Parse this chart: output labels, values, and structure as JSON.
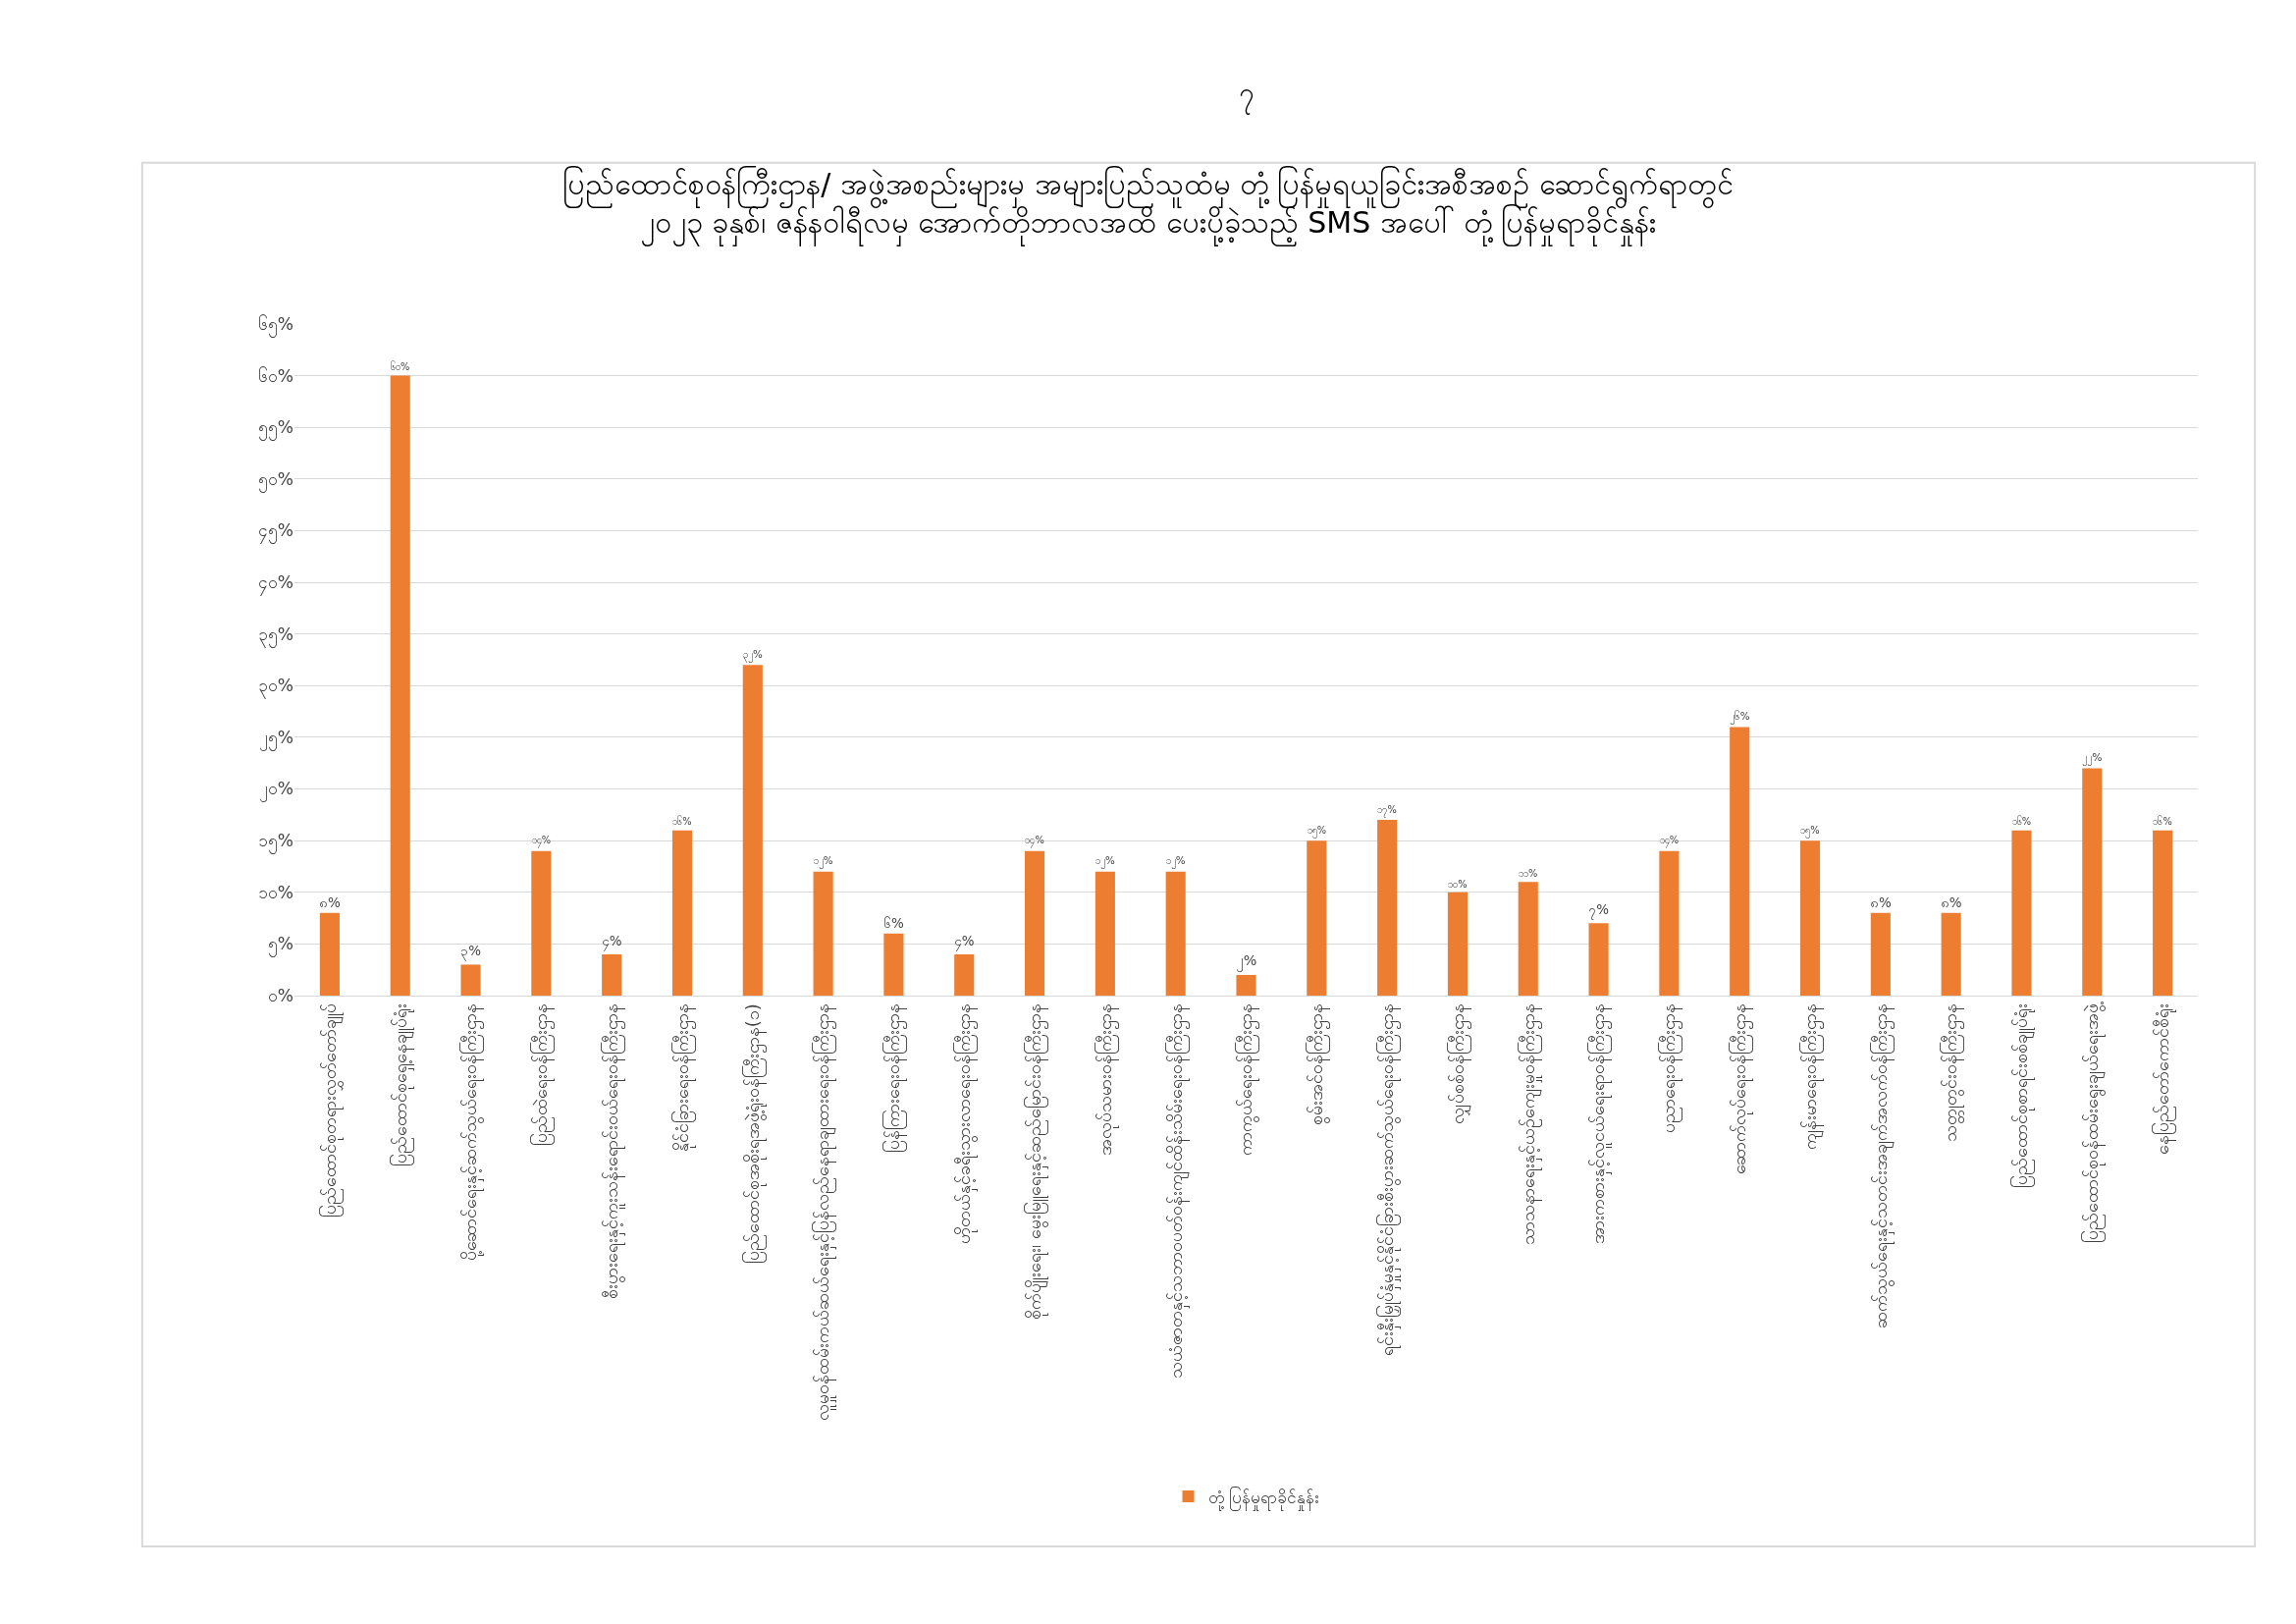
{
  "chart_data": {
    "type": "bar",
    "title": "ပြည်ထောင်စုဝန်ကြီးဌာန/ အဖွဲ့အစည်းများမှ အများပြည်သူထံမှ တုံ့ပြန်မှုရယူခြင်းအစီအစဉ် ဆောင်ရွက်ရာတွင်\n၂၀၂၃ ခုနှစ်၊ ဇန်နဝါရီလမှ အောက်တိုဘာလအထိ ပေးပို့ခဲ့သည့် SMS အပေါ် တုံ့ပြန်မှုရာခိုင်နှုန်း",
    "annotations": [
      "၇"
    ],
    "categories": [
      "ပြည်ထောင်စုတရားလွှတ်တော်ချုပ်",
      "ပြည်ထောင်စုရှေ့နေချုပ်ရုံး",
      "ပို့ဆောင်ရေးနှင့်ဆက်သွယ်ရေးဝန်ကြီးဌာန",
      "ပြည်ထဲရေးဝန်ကြီးဌာန",
      "စီးပွားရေးနှင့်ကူးသန်းရောင်းဝယ်ရေးဝန်ကြီးဌာန",
      "နိုင်ငံခြားရေးဝန်ကြီးဌာန",
      "ပြည်ထောင်စုအစိုးရအဖွဲ့ရုံးဝန်ကြီးဌာန(၁)",
      "လူမှုဝန်ထမ်းကယ်ဆယ်ရေးနှင့်ပြန်လည်နေရာချထားရေးဝန်ကြီးဌာန",
      "ပြန်ကြားရေးဝန်ကြီးဌာန",
      "ဟိုတယ်နှင့်ခရီးသွားလာရေးဝန်ကြီးဌာန",
      "စိုက်ပျိုးရေး၊ မွေးမြူရေးနှင့်ဆည်မြောင်းဝန်ကြီးဌာန",
      "အလုပ်သမားဝန်ကြီးဌာန",
      "သယံဇာတနှင့်သဘာဝပတ်ဝန်းကျင်ထိန်းသိမ်းရေးဝန်ကြီးဌာန",
      "ကာကွယ်ရေးဝန်ကြီးဌာန",
      "စွမ်းအင်ဝန်ကြီးဌာန",
      "ရင်းနှီးမြှုပ်နှံမှုနှင့်နိုင်ငံခြားစီးပွားဆက်သွယ်ရေးဝန်ကြီးဌာန",
      "လျှပ်စစ်ဝန်ကြီးဌာန",
      "သာသနာရေးနှင့်ယဉ်ကျေးမှုဝန်ကြီးဌာန",
      "အားကစားနှင့်လူငယ်ရေးရာဝန်ကြီးဌာန",
      "ပညာရေးဝန်ကြီးဌာန",
      "ဆောက်လုပ်ရေးဝန်ကြီးဌာန",
      "ကျန်းမာရေးဝန်ကြီးဌာန",
      "ဆက်သွယ်ရေးနှင့်သတင်းအချက်အလက်ဝန်ကြီးဌာန",
      "သတ္တုတွင်းဝန်ကြီးဌာန",
      "ပြည်ထောင်စုစာရင်းစစ်ချုပ်ရုံး",
      "ပြည်ထောင်စုဝန်ထမ်းရွေးချယ်ရေးအဖွဲ့",
      "နေပြည်တော်ကောင်စီရုံး"
    ],
    "series": [
      {
        "name": "တုံ့ပြန်မှုရာခိုင်နှုန်း",
        "color": "#ed7d31",
        "values": [
          8,
          60,
          3,
          14,
          4,
          16,
          32,
          12,
          6,
          4,
          14,
          12,
          12,
          2,
          15,
          17,
          10,
          11,
          7,
          14,
          26,
          15,
          8,
          8,
          16,
          22,
          16
        ],
        "value_labels": [
          "၈%",
          "၆၀%",
          "၃%",
          "၁၄%",
          "၄%",
          "၁၆%",
          "၃၂%",
          "၁၂%",
          "၆%",
          "၄%",
          "၁၄%",
          "၁၂%",
          "၁၂%",
          "၂%",
          "၁၅%",
          "၁၇%",
          "၁၀%",
          "၁၁%",
          "၇%",
          "၁၄%",
          "၂၆%",
          "၁၅%",
          "၈%",
          "၈%",
          "၁၆%",
          "၂၂%",
          "၁၆%"
        ]
      }
    ],
    "ylim": [
      0,
      65
    ],
    "yticks": [
      {
        "value": 0,
        "label": "၀%"
      },
      {
        "value": 5,
        "label": "၅%"
      },
      {
        "value": 10,
        "label": "၁၀%"
      },
      {
        "value": 15,
        "label": "၁၅%"
      },
      {
        "value": 20,
        "label": "၂၀%"
      },
      {
        "value": 25,
        "label": "၂၅%"
      },
      {
        "value": 30,
        "label": "၃၀%"
      },
      {
        "value": 35,
        "label": "၃၅%"
      },
      {
        "value": 40,
        "label": "၄၀%"
      },
      {
        "value": 45,
        "label": "၄၅%"
      },
      {
        "value": 50,
        "label": "၅၀%"
      },
      {
        "value": 55,
        "label": "၅၅%"
      },
      {
        "value": 60,
        "label": "၆၀%"
      },
      {
        "value": 65,
        "label": "၆၅%"
      }
    ],
    "grid": "y",
    "legend": "bottom"
  }
}
